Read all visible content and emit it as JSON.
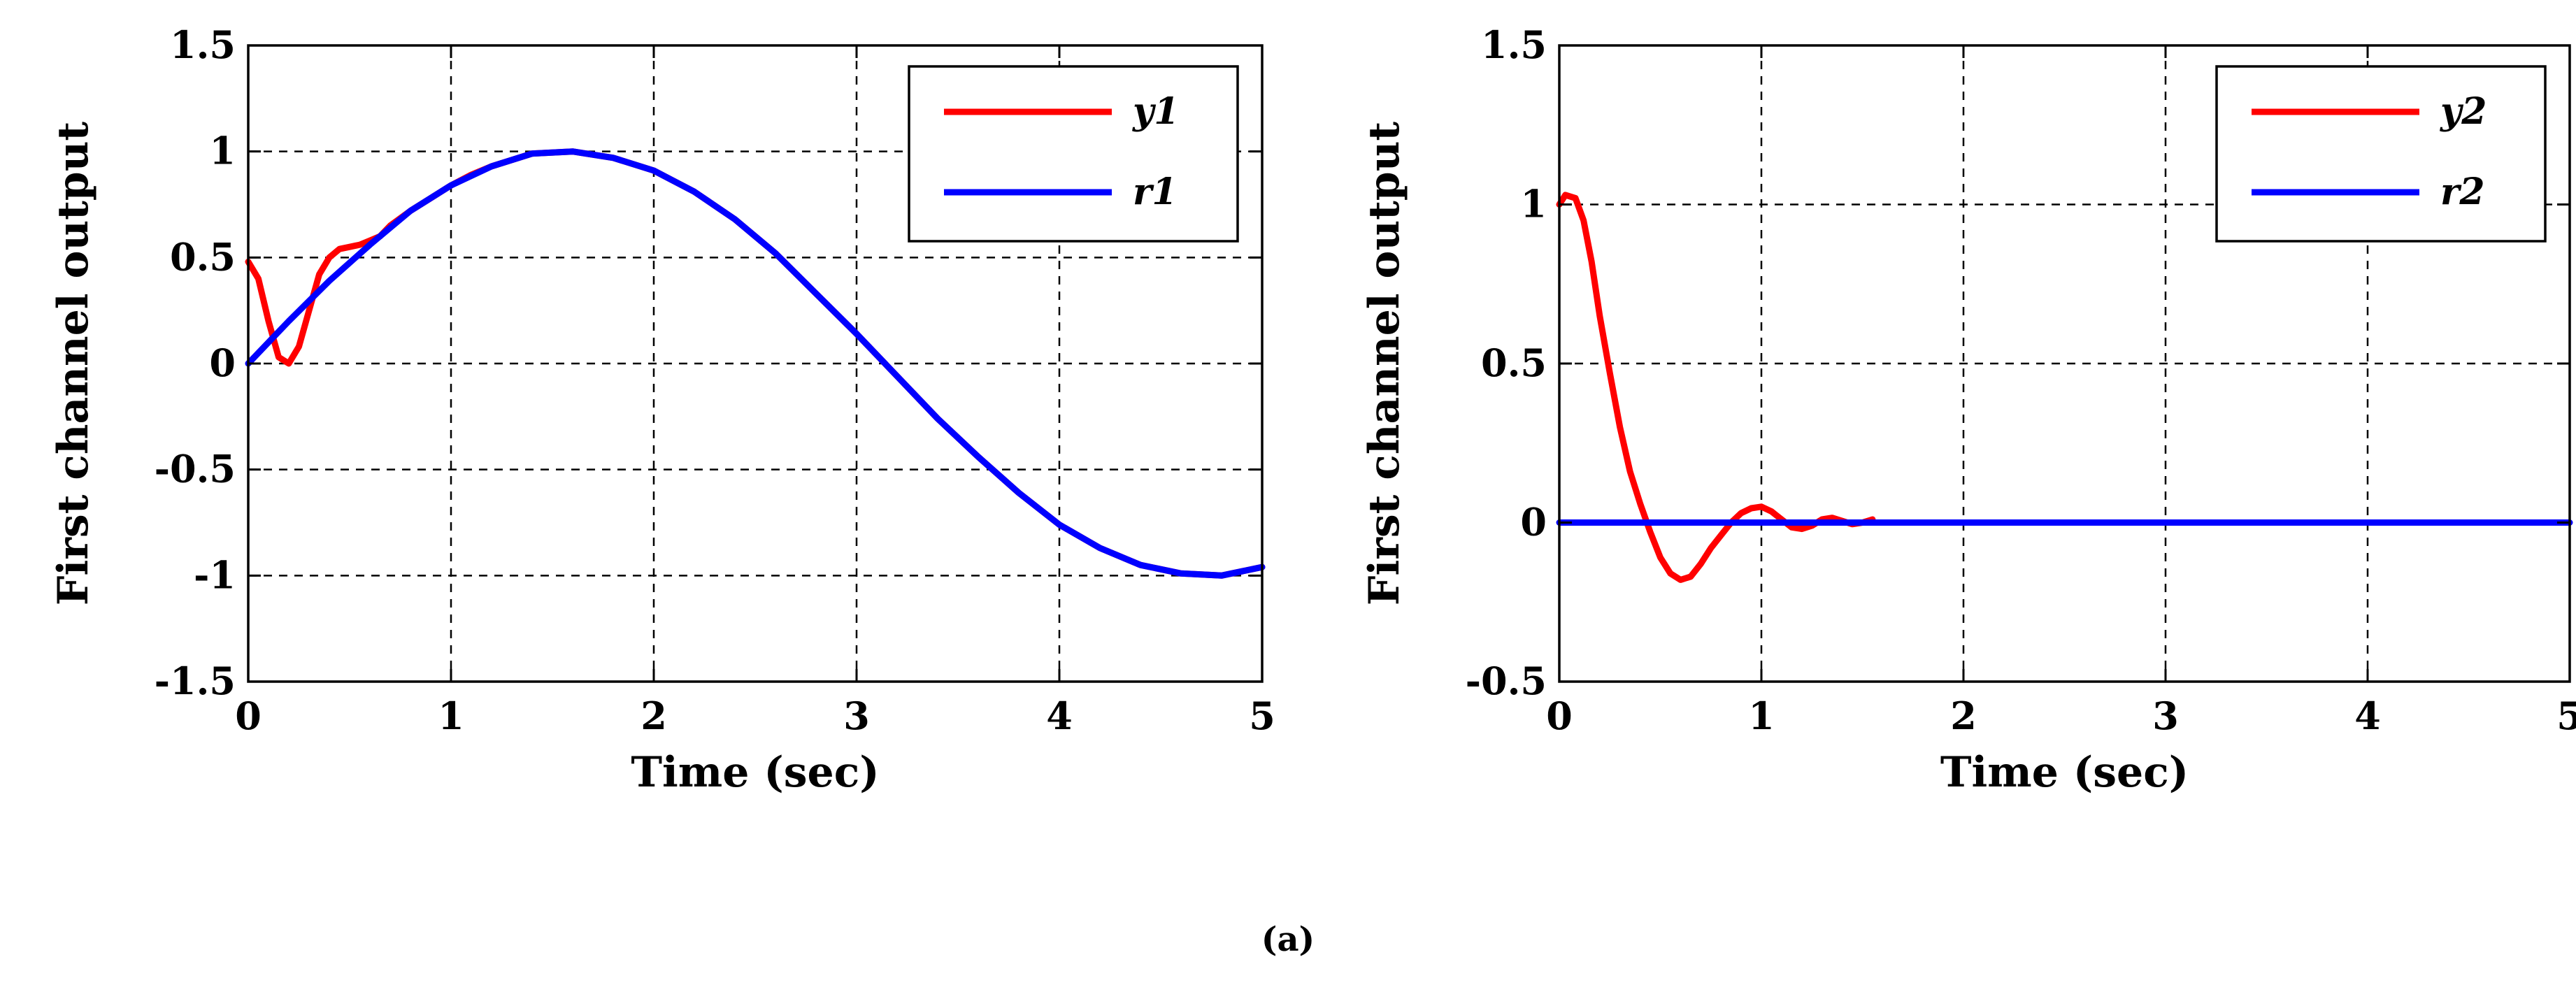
{
  "caption": "(a)",
  "chart_data": [
    {
      "type": "line",
      "title": "",
      "xlabel": "Time (sec)",
      "ylabel": "First channel output",
      "xlim": [
        0,
        5
      ],
      "ylim": [
        -1.5,
        1.5
      ],
      "xticks": [
        "0",
        "1",
        "2",
        "3",
        "4",
        "5"
      ],
      "yticks": [
        "-1.5",
        "-1",
        "-0.5",
        "0",
        "0.5",
        "1",
        "1.5"
      ],
      "grid": true,
      "legend_position": "top-right",
      "series": [
        {
          "name": "y1",
          "color": "#ff0000",
          "x": [
            0,
            0.05,
            0.1,
            0.15,
            0.2,
            0.25,
            0.3,
            0.35,
            0.4,
            0.45,
            0.5,
            0.55,
            0.6,
            0.65,
            0.7,
            0.8,
            0.9,
            1.0,
            1.1,
            1.2,
            1.4,
            1.6,
            1.8,
            2.0,
            2.2,
            2.4,
            2.6,
            2.8,
            3.0,
            3.2,
            3.4,
            3.6,
            3.8,
            4.0,
            4.2,
            4.4,
            4.6,
            4.8,
            5.0
          ],
          "y": [
            0.48,
            0.4,
            0.2,
            0.03,
            0.0,
            0.08,
            0.25,
            0.42,
            0.5,
            0.54,
            0.55,
            0.56,
            0.58,
            0.6,
            0.65,
            0.72,
            0.78,
            0.84,
            0.89,
            0.93,
            0.99,
            1.0,
            0.97,
            0.91,
            0.81,
            0.68,
            0.52,
            0.33,
            0.14,
            -0.06,
            -0.26,
            -0.44,
            -0.61,
            -0.76,
            -0.87,
            -0.95,
            -0.99,
            -1.0,
            -0.96
          ]
        },
        {
          "name": "r1",
          "color": "#0000ff",
          "x": [
            0,
            0.2,
            0.4,
            0.6,
            0.8,
            1.0,
            1.2,
            1.4,
            1.6,
            1.8,
            2.0,
            2.2,
            2.4,
            2.6,
            2.8,
            3.0,
            3.2,
            3.4,
            3.6,
            3.8,
            4.0,
            4.2,
            4.4,
            4.6,
            4.8,
            5.0
          ],
          "y": [
            0.0,
            0.2,
            0.39,
            0.56,
            0.72,
            0.84,
            0.93,
            0.99,
            1.0,
            0.97,
            0.91,
            0.81,
            0.68,
            0.52,
            0.33,
            0.14,
            -0.06,
            -0.26,
            -0.44,
            -0.61,
            -0.76,
            -0.87,
            -0.95,
            -0.99,
            -1.0,
            -0.96
          ]
        }
      ]
    },
    {
      "type": "line",
      "title": "",
      "xlabel": "Time (sec)",
      "ylabel": "First channel output",
      "xlim": [
        0,
        5
      ],
      "ylim": [
        -0.5,
        1.5
      ],
      "xticks": [
        "0",
        "1",
        "2",
        "3",
        "4",
        "5"
      ],
      "yticks": [
        "-0.5",
        "0",
        "0.5",
        "1",
        "1.5"
      ],
      "grid": true,
      "legend_position": "top-right",
      "series": [
        {
          "name": "y2",
          "color": "#ff0000",
          "x": [
            0,
            0.03,
            0.08,
            0.12,
            0.16,
            0.2,
            0.25,
            0.3,
            0.35,
            0.4,
            0.45,
            0.5,
            0.55,
            0.6,
            0.65,
            0.7,
            0.75,
            0.8,
            0.85,
            0.9,
            0.95,
            1.0,
            1.05,
            1.1,
            1.15,
            1.2,
            1.25,
            1.3,
            1.35,
            1.4,
            1.45,
            1.5,
            1.55
          ],
          "y": [
            1.0,
            1.03,
            1.02,
            0.95,
            0.82,
            0.65,
            0.47,
            0.3,
            0.16,
            0.06,
            -0.03,
            -0.11,
            -0.16,
            -0.18,
            -0.17,
            -0.13,
            -0.08,
            -0.04,
            0.0,
            0.03,
            0.045,
            0.05,
            0.035,
            0.01,
            -0.015,
            -0.02,
            -0.01,
            0.01,
            0.015,
            0.005,
            -0.005,
            0.0,
            0.01
          ]
        },
        {
          "name": "r2",
          "color": "#0000ff",
          "x": [
            0,
            5
          ],
          "y": [
            0,
            0
          ]
        }
      ]
    }
  ]
}
